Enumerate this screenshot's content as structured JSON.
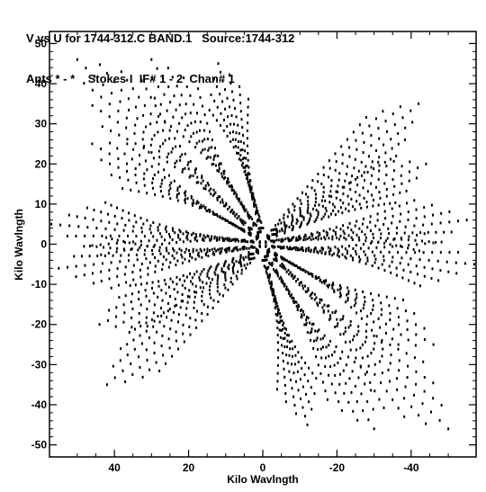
{
  "header": {
    "line1": "V vs U for 1744-312.C BAND.1   Source:1744-312",
    "line2": "Ants * - *    Stokes I  IF# 1 - 2  Chan# 1"
  },
  "chart_data": {
    "type": "scatter",
    "title": "V vs U for 1744-312.C BAND.1   Source:1744-312",
    "subtitle": "Ants * - *    Stokes I  IF# 1 - 2  Chan# 1",
    "xlabel": "Kilo Wavlngth",
    "ylabel": "Kilo Wavlngth",
    "xlim": [
      57.5,
      -57.5
    ],
    "ylim": [
      -53,
      53
    ],
    "x_ticks": [
      40,
      20,
      0,
      -20,
      -40
    ],
    "x_tick_labels": [
      "40",
      "20",
      "0",
      "-20",
      "-40"
    ],
    "y_ticks": [
      50,
      40,
      30,
      20,
      10,
      0,
      -10,
      -20,
      -30,
      -40,
      -50
    ],
    "y_tick_labels": [
      "50",
      "40",
      "30",
      "20",
      "10",
      "0",
      "-10",
      "-20",
      "-30",
      "-40",
      "-50"
    ],
    "grid": false,
    "color": "#000000",
    "description_of_points": "uv coverage tracks, symmetric under (u,v)->(-u,-v)",
    "tracks": [
      {
        "u_start": 0.8,
        "v_start": 0.5,
        "u_end": 57,
        "v_end": 5,
        "samples": 24
      },
      {
        "u_start": 0.8,
        "v_start": -0.5,
        "u_end": 55,
        "v_end": -6,
        "samples": 24
      },
      {
        "u_start": 1.5,
        "v_start": 2,
        "u_end": 50,
        "v_end": 46,
        "samples": 22
      },
      {
        "u_start": 1,
        "v_start": 3,
        "u_end": 30,
        "v_end": 46,
        "samples": 20
      },
      {
        "u_start": 0.5,
        "v_start": 4,
        "u_end": 12,
        "v_end": 45,
        "samples": 20
      },
      {
        "u_start": 1.5,
        "v_start": -2,
        "u_end": 42,
        "v_end": -35,
        "samples": 20
      },
      {
        "u_start": 1.5,
        "v_start": 1.5,
        "u_end": 46,
        "v_end": 25,
        "samples": 20
      },
      {
        "u_start": 1.5,
        "v_start": -1.5,
        "u_end": 44,
        "v_end": -20,
        "samples": 20
      }
    ]
  }
}
